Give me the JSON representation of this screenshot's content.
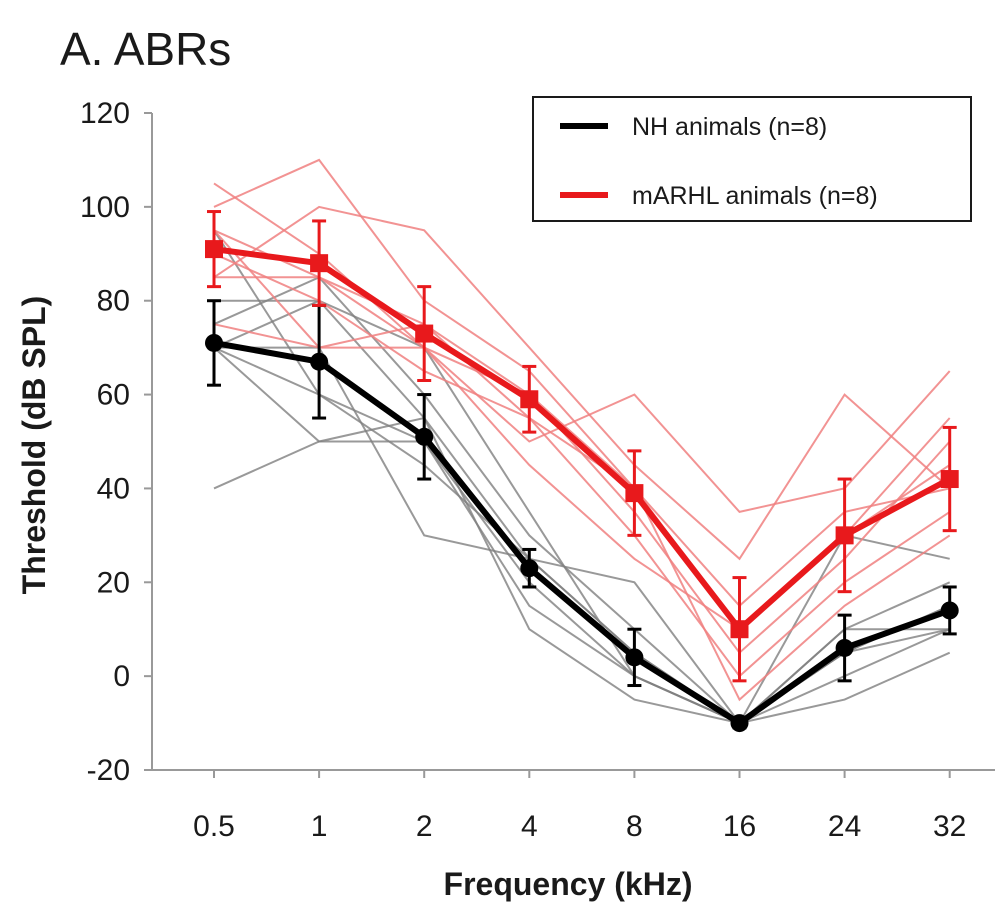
{
  "chart_data": {
    "type": "line",
    "title": "A. ABRs",
    "xlabel": "Frequency (kHz)",
    "ylabel": "Threshold (dB SPL)",
    "categories": [
      "0.5",
      "1",
      "2",
      "4",
      "8",
      "16",
      "24",
      "32"
    ],
    "ylim": [
      -20,
      120
    ],
    "yticks": [
      -20,
      0,
      20,
      40,
      60,
      80,
      100,
      120
    ],
    "grid": false,
    "legend_position": "top-right",
    "series": [
      {
        "name": "NH  animals (n=8)",
        "color": "#000000",
        "marker": "circle",
        "values": [
          71,
          67,
          51,
          23,
          4,
          -10,
          6,
          14
        ],
        "error": [
          9,
          12,
          9,
          4,
          6,
          1,
          7,
          5
        ]
      },
      {
        "name": "mARHL  animals (n=8)",
        "color": "#e8191c",
        "marker": "square",
        "values": [
          91,
          88,
          73,
          59,
          39,
          10,
          30,
          42
        ],
        "error": [
          8,
          9,
          10,
          7,
          9,
          11,
          12,
          11
        ]
      }
    ],
    "individual_traces": {
      "NH": {
        "color": "#808080",
        "lines": [
          [
            70,
            80,
            55,
            25,
            5,
            -10,
            5,
            15
          ],
          [
            75,
            85,
            60,
            30,
            10,
            -10,
            10,
            20
          ],
          [
            40,
            50,
            50,
            20,
            0,
            -10,
            0,
            10
          ],
          [
            70,
            60,
            45,
            25,
            5,
            -10,
            5,
            10
          ],
          [
            80,
            80,
            70,
            35,
            0,
            -10,
            -5,
            5
          ],
          [
            70,
            70,
            30,
            25,
            20,
            -10,
            10,
            10
          ],
          [
            95,
            60,
            50,
            15,
            0,
            -10,
            5,
            15
          ],
          [
            70,
            50,
            55,
            10,
            -5,
            -10,
            30,
            25
          ]
        ]
      },
      "mARHL": {
        "color": "#f08080",
        "lines": [
          [
            105,
            90,
            70,
            60,
            40,
            10,
            30,
            45
          ],
          [
            100,
            110,
            80,
            65,
            40,
            15,
            35,
            40
          ],
          [
            85,
            100,
            95,
            70,
            45,
            25,
            60,
            40
          ],
          [
            95,
            85,
            75,
            60,
            35,
            5,
            25,
            50
          ],
          [
            90,
            80,
            65,
            55,
            30,
            0,
            20,
            35
          ],
          [
            85,
            85,
            70,
            50,
            60,
            35,
            40,
            65
          ],
          [
            95,
            70,
            75,
            55,
            40,
            -5,
            15,
            30
          ],
          [
            75,
            70,
            70,
            45,
            25,
            10,
            30,
            55
          ]
        ]
      }
    }
  }
}
